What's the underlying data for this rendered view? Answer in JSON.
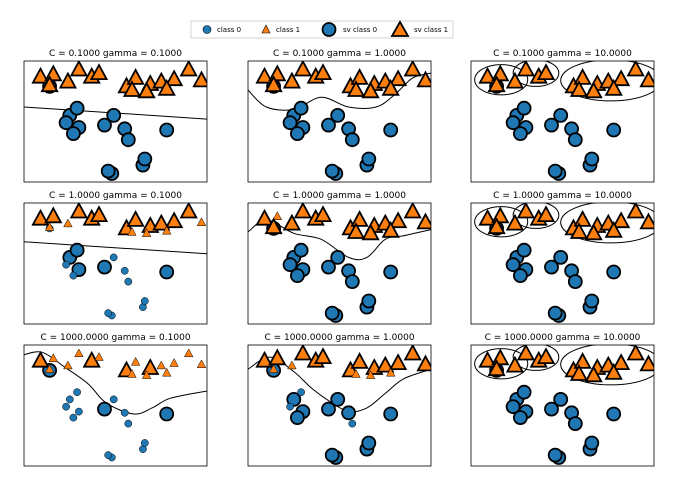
{
  "chart_data": {
    "type": "scatter",
    "figure": "SVM decision boundaries for varying C and gamma (3x3 grid)",
    "legend": [
      {
        "label": "class 0",
        "marker": "circle",
        "role": "point"
      },
      {
        "label": "class 1",
        "marker": "triangle",
        "role": "point"
      },
      {
        "label": "sv class 0",
        "marker": "circle",
        "role": "support_vector"
      },
      {
        "label": "sv class 1",
        "marker": "triangle",
        "role": "support_vector"
      }
    ],
    "colors": {
      "class0": "#1f77b4",
      "class1": "#ff7f0e",
      "edge": "#000000"
    },
    "xlim": [
      0,
      100
    ],
    "ylim": [
      0,
      100
    ],
    "axes_ticks": "none",
    "data": {
      "class0": [
        [
          14,
          79
        ],
        [
          25,
          55
        ],
        [
          29,
          61
        ],
        [
          23,
          49
        ],
        [
          30,
          45
        ],
        [
          44,
          47
        ],
        [
          49,
          55
        ],
        [
          55,
          44
        ],
        [
          57,
          35
        ],
        [
          78,
          43
        ],
        [
          65,
          14
        ],
        [
          48,
          7
        ],
        [
          46,
          9
        ],
        [
          27,
          40
        ],
        [
          66,
          19
        ]
      ],
      "class1": [
        [
          9,
          87
        ],
        [
          16,
          89
        ],
        [
          30,
          93
        ],
        [
          37,
          87
        ],
        [
          41,
          90
        ],
        [
          56,
          79
        ],
        [
          61,
          86
        ],
        [
          69,
          81
        ],
        [
          75,
          83
        ],
        [
          82,
          85
        ],
        [
          90,
          93
        ],
        [
          97,
          84
        ],
        [
          78,
          77
        ],
        [
          67,
          75
        ],
        [
          59,
          76
        ],
        [
          24,
          83
        ],
        [
          14,
          80
        ]
      ]
    },
    "panels": [
      {
        "title": "C = 0.1000 gamma = 0.1000",
        "C": 0.1,
        "gamma": 0.1,
        "sv_class0": [
          0,
          1,
          2,
          3,
          4,
          5,
          6,
          7,
          8,
          9,
          10,
          11,
          12,
          13,
          14
        ],
        "sv_class1": [
          0,
          1,
          2,
          3,
          4,
          5,
          6,
          7,
          8,
          9,
          10,
          11,
          12,
          13,
          14,
          15,
          16
        ]
      },
      {
        "title": "C = 0.1000 gamma = 1.0000",
        "C": 0.1,
        "gamma": 1.0,
        "sv_class0": [
          0,
          1,
          2,
          3,
          4,
          5,
          6,
          7,
          8,
          9,
          10,
          11,
          12,
          13,
          14
        ],
        "sv_class1": [
          0,
          1,
          2,
          3,
          4,
          5,
          6,
          7,
          8,
          9,
          10,
          11,
          12,
          13,
          14,
          15,
          16
        ]
      },
      {
        "title": "C = 0.1000 gamma = 10.0000",
        "C": 0.1,
        "gamma": 10.0,
        "sv_class0": [
          0,
          1,
          2,
          3,
          4,
          5,
          6,
          7,
          8,
          9,
          10,
          11,
          12,
          13,
          14
        ],
        "sv_class1": [
          0,
          1,
          2,
          3,
          4,
          5,
          6,
          7,
          8,
          9,
          10,
          11,
          12,
          13,
          14,
          15,
          16
        ]
      },
      {
        "title": "C = 1.0000 gamma = 0.1000",
        "C": 1.0,
        "gamma": 0.1,
        "sv_class0": [
          1,
          2,
          4,
          5,
          9
        ],
        "sv_class1": [
          0,
          1,
          2,
          3,
          4,
          5,
          6,
          7,
          8,
          9,
          10
        ]
      },
      {
        "title": "C = 1.0000 gamma = 1.0000",
        "C": 1.0,
        "gamma": 1.0,
        "sv_class0": [
          0,
          1,
          2,
          3,
          4,
          5,
          6,
          7,
          8,
          9,
          10,
          11,
          12,
          13,
          14
        ],
        "sv_class1": [
          0,
          2,
          3,
          4,
          5,
          6,
          7,
          8,
          9,
          10,
          11,
          12,
          13,
          14,
          15,
          16
        ]
      },
      {
        "title": "C = 1.0000 gamma = 10.0000",
        "C": 1.0,
        "gamma": 10.0,
        "sv_class0": [
          0,
          1,
          2,
          3,
          4,
          5,
          6,
          7,
          8,
          9,
          10,
          11,
          12,
          13,
          14
        ],
        "sv_class1": [
          0,
          1,
          2,
          3,
          4,
          5,
          6,
          7,
          8,
          9,
          10,
          11,
          12,
          13,
          14,
          15,
          16
        ]
      },
      {
        "title": "C = 1000.0000 gamma = 0.1000",
        "C": 1000,
        "gamma": 0.1,
        "sv_class0": [
          0,
          5,
          9
        ],
        "sv_class1": [
          0,
          3,
          5,
          7
        ]
      },
      {
        "title": "C = 1000.0000 gamma = 1.0000",
        "C": 1000,
        "gamma": 1.0,
        "sv_class0": [
          0,
          1,
          4,
          5,
          6,
          7,
          9,
          10,
          11,
          12,
          13,
          14
        ],
        "sv_class1": [
          0,
          1,
          2,
          3,
          4,
          5,
          6,
          7,
          8,
          9,
          10,
          11
        ]
      },
      {
        "title": "C = 1000.0000 gamma = 10.0000",
        "C": 1000,
        "gamma": 10.0,
        "sv_class0": [
          0,
          1,
          2,
          3,
          4,
          5,
          6,
          7,
          8,
          9,
          10,
          11,
          12,
          13,
          14
        ],
        "sv_class1": [
          0,
          1,
          2,
          3,
          4,
          5,
          6,
          7,
          8,
          9,
          10,
          11,
          12,
          13,
          14,
          15,
          16
        ]
      }
    ],
    "boundaries": [
      {
        "panel": 0,
        "kind": "line",
        "points": [
          [
            0,
            62
          ],
          [
            100,
            52
          ]
        ]
      },
      {
        "panel": 1,
        "kind": "curve",
        "points": [
          [
            0,
            76
          ],
          [
            10,
            62
          ],
          [
            25,
            60
          ],
          [
            40,
            70
          ],
          [
            55,
            62
          ],
          [
            70,
            62
          ],
          [
            80,
            72
          ],
          [
            90,
            86
          ],
          [
            100,
            90
          ]
        ]
      },
      {
        "panel": 2,
        "kind": "blobs"
      },
      {
        "panel": 3,
        "kind": "line",
        "points": [
          [
            0,
            68
          ],
          [
            100,
            58
          ]
        ]
      },
      {
        "panel": 4,
        "kind": "curve",
        "points": [
          [
            0,
            76
          ],
          [
            10,
            86
          ],
          [
            25,
            75
          ],
          [
            40,
            70
          ],
          [
            55,
            55
          ],
          [
            65,
            55
          ],
          [
            75,
            70
          ],
          [
            85,
            73
          ],
          [
            100,
            78
          ]
        ]
      },
      {
        "panel": 5,
        "kind": "blobs"
      },
      {
        "panel": 6,
        "kind": "curve",
        "points": [
          [
            0,
            92
          ],
          [
            10,
            94
          ],
          [
            22,
            82
          ],
          [
            35,
            68
          ],
          [
            45,
            52
          ],
          [
            60,
            43
          ],
          [
            70,
            48
          ],
          [
            80,
            56
          ],
          [
            100,
            62
          ]
        ]
      },
      {
        "panel": 7,
        "kind": "curve",
        "points": [
          [
            0,
            80
          ],
          [
            12,
            90
          ],
          [
            25,
            78
          ],
          [
            35,
            64
          ],
          [
            45,
            53
          ],
          [
            55,
            45
          ],
          [
            65,
            48
          ],
          [
            75,
            60
          ],
          [
            85,
            72
          ],
          [
            100,
            80
          ]
        ]
      },
      {
        "panel": 8,
        "kind": "blobs"
      }
    ]
  }
}
